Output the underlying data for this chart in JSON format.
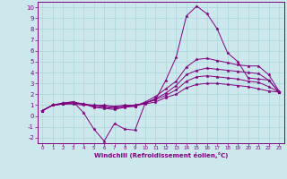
{
  "xlabel": "Windchill (Refroidissement éolien,°C)",
  "background_color": "#cce8ec",
  "grid_color": "#a8d4da",
  "line_color": "#800080",
  "xlim": [
    -0.5,
    23.5
  ],
  "ylim": [
    -2.5,
    10.5
  ],
  "xticks": [
    0,
    1,
    2,
    3,
    4,
    5,
    6,
    7,
    8,
    9,
    10,
    11,
    12,
    13,
    14,
    15,
    16,
    17,
    18,
    19,
    20,
    21,
    22,
    23
  ],
  "yticks": [
    -2,
    -1,
    0,
    1,
    2,
    3,
    4,
    5,
    6,
    7,
    8,
    9,
    10
  ],
  "lines": [
    {
      "x": [
        0,
        1,
        2,
        3,
        4,
        5,
        6,
        7,
        8,
        9,
        10,
        11,
        12,
        13,
        14,
        15,
        16,
        17,
        18,
        19,
        20,
        21,
        22,
        23
      ],
      "y": [
        0.5,
        1.0,
        1.2,
        1.3,
        0.3,
        -1.2,
        -2.3,
        -0.7,
        -1.2,
        -1.3,
        1.2,
        1.5,
        3.3,
        5.4,
        9.2,
        10.1,
        9.4,
        8.0,
        5.8,
        5.0,
        3.5,
        3.4,
        3.3,
        2.2
      ]
    },
    {
      "x": [
        0,
        1,
        2,
        3,
        4,
        5,
        6,
        7,
        8,
        9,
        10,
        11,
        12,
        13,
        14,
        15,
        16,
        17,
        18,
        19,
        20,
        21,
        22,
        23
      ],
      "y": [
        0.5,
        1.0,
        1.2,
        1.3,
        1.1,
        0.8,
        0.7,
        0.6,
        0.8,
        0.9,
        1.3,
        1.8,
        2.5,
        3.2,
        4.5,
        5.2,
        5.3,
        5.1,
        4.9,
        4.7,
        4.6,
        4.6,
        3.8,
        2.3
      ]
    },
    {
      "x": [
        0,
        1,
        2,
        3,
        4,
        5,
        6,
        7,
        8,
        9,
        10,
        11,
        12,
        13,
        14,
        15,
        16,
        17,
        18,
        19,
        20,
        21,
        22,
        23
      ],
      "y": [
        0.5,
        1.0,
        1.1,
        1.2,
        1.1,
        0.9,
        0.8,
        0.7,
        0.9,
        0.9,
        1.2,
        1.6,
        2.1,
        2.8,
        3.8,
        4.2,
        4.4,
        4.3,
        4.2,
        4.1,
        4.0,
        3.9,
        3.3,
        2.2
      ]
    },
    {
      "x": [
        0,
        1,
        2,
        3,
        4,
        5,
        6,
        7,
        8,
        9,
        10,
        11,
        12,
        13,
        14,
        15,
        16,
        17,
        18,
        19,
        20,
        21,
        22,
        23
      ],
      "y": [
        0.5,
        1.0,
        1.1,
        1.2,
        1.1,
        1.0,
        0.9,
        0.8,
        0.9,
        1.0,
        1.2,
        1.5,
        1.9,
        2.4,
        3.2,
        3.6,
        3.7,
        3.6,
        3.5,
        3.4,
        3.2,
        3.1,
        2.7,
        2.2
      ]
    },
    {
      "x": [
        0,
        1,
        2,
        3,
        4,
        5,
        6,
        7,
        8,
        9,
        10,
        11,
        12,
        13,
        14,
        15,
        16,
        17,
        18,
        19,
        20,
        21,
        22,
        23
      ],
      "y": [
        0.5,
        1.0,
        1.1,
        1.1,
        1.0,
        1.0,
        1.0,
        0.9,
        1.0,
        1.0,
        1.1,
        1.3,
        1.7,
        2.0,
        2.6,
        2.9,
        3.0,
        3.0,
        2.9,
        2.8,
        2.7,
        2.5,
        2.3,
        2.2
      ]
    }
  ]
}
